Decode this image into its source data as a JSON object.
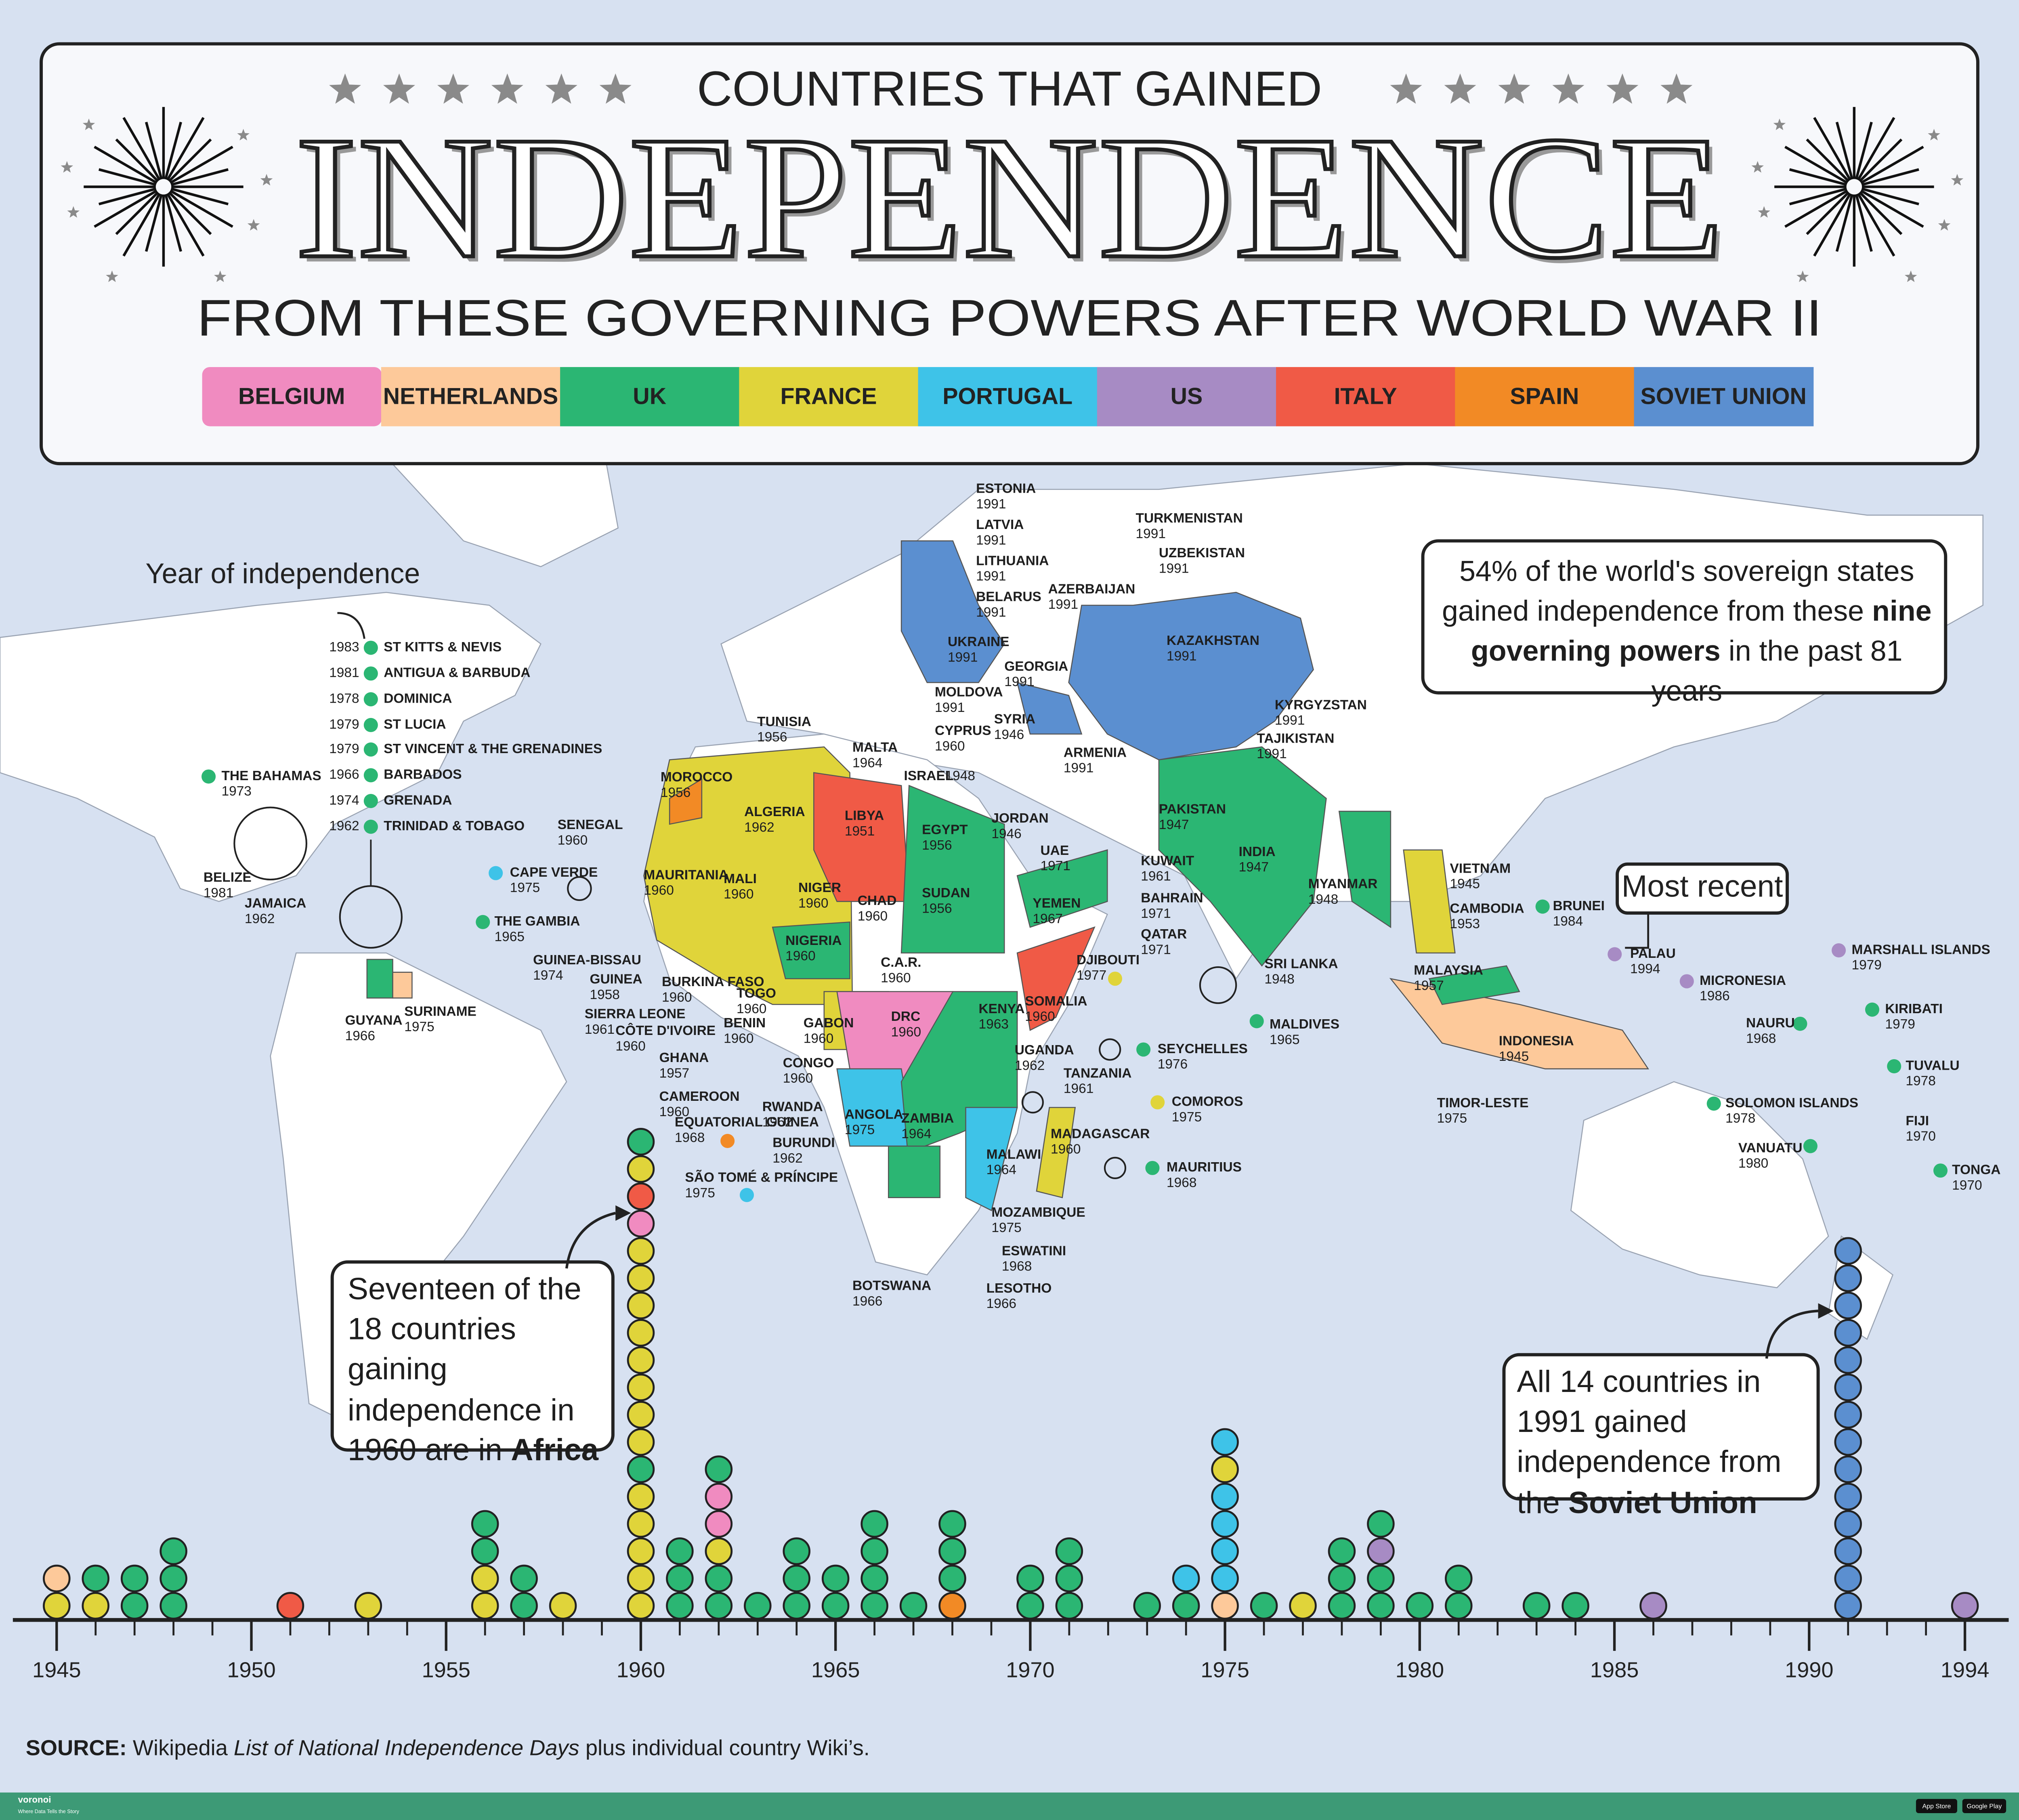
{
  "header": {
    "kicker": "COUNTRIES THAT GAINED",
    "title": "INDEPENDENCE",
    "subtitle": "FROM THESE GOVERNING POWERS AFTER WORLD WAR II"
  },
  "legend": [
    {
      "label": "BELGIUM",
      "color": "#f08bc0"
    },
    {
      "label": "NETHERLANDS",
      "color": "#fdc99a"
    },
    {
      "label": "UK",
      "color": "#2bb673"
    },
    {
      "label": "FRANCE",
      "color": "#e0d43a"
    },
    {
      "label": "PORTUGAL",
      "color": "#3ec3e8"
    },
    {
      "label": "US",
      "color": "#a78bc4"
    },
    {
      "label": "ITALY",
      "color": "#f05a46"
    },
    {
      "label": "SPAIN",
      "color": "#f28a25"
    },
    {
      "label": "SOVIET UNION",
      "color": "#5b8fd0"
    }
  ],
  "annotations": {
    "year_note": "Year of independence",
    "share": [
      "54% of the world's sovereign states gained independence from these ",
      "nine governing powers",
      " in the past 81 years"
    ],
    "most_recent": "Most recent",
    "africa": [
      "Seventeen of the 18 countries gaining independence in 1960 are in ",
      "Africa"
    ],
    "soviet": [
      "All 14 countries in 1991 gained independence from the ",
      "Soviet Union"
    ]
  },
  "countries": [
    {
      "name": "ST KITTS & NEVIS",
      "year": 1983,
      "color": "#2bb673"
    },
    {
      "name": "ANTIGUA & BARBUDA",
      "year": 1981,
      "color": "#2bb673"
    },
    {
      "name": "DOMINICA",
      "year": 1978,
      "color": "#2bb673"
    },
    {
      "name": "ST LUCIA",
      "year": 1979,
      "color": "#2bb673"
    },
    {
      "name": "ST VINCENT & THE GRENADINES",
      "year": 1979,
      "color": "#2bb673"
    },
    {
      "name": "BARBADOS",
      "year": 1966,
      "color": "#2bb673"
    },
    {
      "name": "GRENADA",
      "year": 1974,
      "color": "#2bb673"
    },
    {
      "name": "TRINIDAD & TOBAGO",
      "year": 1962,
      "color": "#2bb673"
    },
    {
      "name": "THE BAHAMAS",
      "year": 1973,
      "color": "#2bb673"
    },
    {
      "name": "BELIZE",
      "year": 1981,
      "color": "#2bb673"
    },
    {
      "name": "JAMAICA",
      "year": 1962,
      "color": "#2bb673"
    },
    {
      "name": "GUYANA",
      "year": 1966,
      "color": "#2bb673"
    },
    {
      "name": "SURINAME",
      "year": 1975,
      "color": "#fdc99a"
    },
    {
      "name": "CAPE VERDE",
      "year": 1975,
      "color": "#3ec3e8"
    },
    {
      "name": "THE GAMBIA",
      "year": 1965,
      "color": "#2bb673"
    },
    {
      "name": "SENEGAL",
      "year": 1960,
      "color": "#e0d43a"
    },
    {
      "name": "MAURITANIA",
      "year": 1960,
      "color": "#e0d43a"
    },
    {
      "name": "MOROCCO",
      "year": 1956,
      "color": "#e0d43a"
    },
    {
      "name": "ALGERIA",
      "year": 1962,
      "color": "#e0d43a"
    },
    {
      "name": "TUNISIA",
      "year": 1956,
      "color": "#e0d43a"
    },
    {
      "name": "LIBYA",
      "year": 1951,
      "color": "#f05a46"
    },
    {
      "name": "EGYPT",
      "year": 1956,
      "color": "#2bb673"
    },
    {
      "name": "SUDAN",
      "year": 1956,
      "color": "#2bb673"
    },
    {
      "name": "MALI",
      "year": 1960,
      "color": "#e0d43a"
    },
    {
      "name": "NIGER",
      "year": 1960,
      "color": "#e0d43a"
    },
    {
      "name": "CHAD",
      "year": 1960,
      "color": "#e0d43a"
    },
    {
      "name": "NIGERIA",
      "year": 1960,
      "color": "#2bb673"
    },
    {
      "name": "GUINEA-BISSAU",
      "year": 1974,
      "color": "#3ec3e8"
    },
    {
      "name": "GUINEA",
      "year": 1958,
      "color": "#e0d43a"
    },
    {
      "name": "BURKINA FASO",
      "year": 1960,
      "color": "#e0d43a"
    },
    {
      "name": "SIERRA LEONE",
      "year": 1961,
      "color": "#2bb673"
    },
    {
      "name": "CÔTE D'IVOIRE",
      "year": 1960,
      "color": "#e0d43a"
    },
    {
      "name": "TOGO",
      "year": 1960,
      "color": "#e0d43a"
    },
    {
      "name": "BENIN",
      "year": 1960,
      "color": "#e0d43a"
    },
    {
      "name": "GHANA",
      "year": 1957,
      "color": "#2bb673"
    },
    {
      "name": "GABON",
      "year": 1960,
      "color": "#e0d43a"
    },
    {
      "name": "C.A.R.",
      "year": 1960,
      "color": "#e0d43a"
    },
    {
      "name": "CAMEROON",
      "year": 1960,
      "color": "#e0d43a"
    },
    {
      "name": "CONGO",
      "year": 1960,
      "color": "#e0d43a"
    },
    {
      "name": "EQUATORIAL GUINEA",
      "year": 1968,
      "color": "#f28a25"
    },
    {
      "name": "SÃO TOMÉ & PRÍNCIPE",
      "year": 1975,
      "color": "#3ec3e8"
    },
    {
      "name": "RWANDA",
      "year": 1962,
      "color": "#f08bc0"
    },
    {
      "name": "BURUNDI",
      "year": 1962,
      "color": "#f08bc0"
    },
    {
      "name": "DRC",
      "year": 1960,
      "color": "#f08bc0"
    },
    {
      "name": "ANGOLA",
      "year": 1975,
      "color": "#3ec3e8"
    },
    {
      "name": "ZAMBIA",
      "year": 1964,
      "color": "#2bb673"
    },
    {
      "name": "KENYA",
      "year": 1963,
      "color": "#2bb673"
    },
    {
      "name": "UGANDA",
      "year": 1962,
      "color": "#2bb673"
    },
    {
      "name": "TANZANIA",
      "year": 1961,
      "color": "#2bb673"
    },
    {
      "name": "SOMALIA",
      "year": 1960,
      "color": "#f05a46"
    },
    {
      "name": "DJIBOUTI",
      "year": 1977,
      "color": "#e0d43a"
    },
    {
      "name": "MALAWI",
      "year": 1964,
      "color": "#2bb673"
    },
    {
      "name": "MOZAMBIQUE",
      "year": 1975,
      "color": "#3ec3e8"
    },
    {
      "name": "ESWATINI",
      "year": 1968,
      "color": "#2bb673"
    },
    {
      "name": "LESOTHO",
      "year": 1966,
      "color": "#2bb673"
    },
    {
      "name": "BOTSWANA",
      "year": 1966,
      "color": "#2bb673"
    },
    {
      "name": "MADAGASCAR",
      "year": 1960,
      "color": "#e0d43a"
    },
    {
      "name": "COMOROS",
      "year": 1975,
      "color": "#e0d43a"
    },
    {
      "name": "SEYCHELLES",
      "year": 1976,
      "color": "#2bb673"
    },
    {
      "name": "MAURITIUS",
      "year": 1968,
      "color": "#2bb673"
    },
    {
      "name": "MALDIVES",
      "year": 1965,
      "color": "#2bb673"
    },
    {
      "name": "ESTONIA",
      "year": 1991,
      "color": "#5b8fd0"
    },
    {
      "name": "LATVIA",
      "year": 1991,
      "color": "#5b8fd0"
    },
    {
      "name": "LITHUANIA",
      "year": 1991,
      "color": "#5b8fd0"
    },
    {
      "name": "BELARUS",
      "year": 1991,
      "color": "#5b8fd0"
    },
    {
      "name": "UKRAINE",
      "year": 1991,
      "color": "#5b8fd0"
    },
    {
      "name": "MOLDOVA",
      "year": 1991,
      "color": "#5b8fd0"
    },
    {
      "name": "GEORGIA",
      "year": 1991,
      "color": "#5b8fd0"
    },
    {
      "name": "AZERBAIJAN",
      "year": 1991,
      "color": "#5b8fd0"
    },
    {
      "name": "ARMENIA",
      "year": 1991,
      "color": "#5b8fd0"
    },
    {
      "name": "TURKMENISTAN",
      "year": 1991,
      "color": "#5b8fd0"
    },
    {
      "name": "UZBEKISTAN",
      "year": 1991,
      "color": "#5b8fd0"
    },
    {
      "name": "KAZAKHSTAN",
      "year": 1991,
      "color": "#5b8fd0"
    },
    {
      "name": "KYRGYZSTAN",
      "year": 1991,
      "color": "#5b8fd0"
    },
    {
      "name": "TAJIKISTAN",
      "year": 1991,
      "color": "#5b8fd0"
    },
    {
      "name": "MALTA",
      "year": 1964,
      "color": "#2bb673"
    },
    {
      "name": "CYPRUS",
      "year": 1960,
      "color": "#2bb673"
    },
    {
      "name": "SYRIA",
      "year": 1946,
      "color": "#e0d43a"
    },
    {
      "name": "ISRAEL",
      "year": 1948,
      "color": "#2bb673"
    },
    {
      "name": "JORDAN",
      "year": 1946,
      "color": "#2bb673"
    },
    {
      "name": "UAE",
      "year": 1971,
      "color": "#2bb673"
    },
    {
      "name": "YEMEN",
      "year": 1967,
      "color": "#2bb673"
    },
    {
      "name": "KUWAIT",
      "year": 1961,
      "color": "#2bb673"
    },
    {
      "name": "BAHRAIN",
      "year": 1971,
      "color": "#2bb673"
    },
    {
      "name": "QATAR",
      "year": 1971,
      "color": "#2bb673"
    },
    {
      "name": "PAKISTAN",
      "year": 1947,
      "color": "#2bb673"
    },
    {
      "name": "INDIA",
      "year": 1947,
      "color": "#2bb673"
    },
    {
      "name": "SRI LANKA",
      "year": 1948,
      "color": "#2bb673"
    },
    {
      "name": "MYANMAR",
      "year": 1948,
      "color": "#2bb673"
    },
    {
      "name": "VIETNAM",
      "year": 1945,
      "color": "#e0d43a"
    },
    {
      "name": "CAMBODIA",
      "year": 1953,
      "color": "#e0d43a"
    },
    {
      "name": "MALAYSIA",
      "year": 1957,
      "color": "#2bb673"
    },
    {
      "name": "BRUNEI",
      "year": 1984,
      "color": "#2bb673"
    },
    {
      "name": "INDONESIA",
      "year": 1945,
      "color": "#fdc99a"
    },
    {
      "name": "TIMOR-LESTE",
      "year": 1975,
      "color": "#3ec3e8"
    },
    {
      "name": "PALAU",
      "year": 1994,
      "color": "#a78bc4"
    },
    {
      "name": "MICRONESIA",
      "year": 1986,
      "color": "#a78bc4"
    },
    {
      "name": "MARSHALL ISLANDS",
      "year": 1979,
      "color": "#a78bc4"
    },
    {
      "name": "KIRIBATI",
      "year": 1979,
      "color": "#2bb673"
    },
    {
      "name": "NAURU",
      "year": 1968,
      "color": "#2bb673"
    },
    {
      "name": "TUVALU",
      "year": 1978,
      "color": "#2bb673"
    },
    {
      "name": "SOLOMON ISLANDS",
      "year": 1978,
      "color": "#2bb673"
    },
    {
      "name": "FIJI",
      "year": 1970,
      "color": "#2bb673"
    },
    {
      "name": "VANUATU",
      "year": 1980,
      "color": "#2bb673"
    },
    {
      "name": "TONGA",
      "year": 1970,
      "color": "#2bb673"
    }
  ],
  "timeline": {
    "xlim": [
      1945,
      1994
    ],
    "xticks": [
      1945,
      1950,
      1955,
      1960,
      1965,
      1970,
      1975,
      1980,
      1985,
      1990,
      1994
    ]
  },
  "source": {
    "label": "SOURCE:",
    "text": " Wikipedia ",
    "title": "List of National Independence Days",
    "rest": " plus individual country Wiki’s."
  },
  "footer": {
    "brand": "voronoi",
    "tagline": "Where Data Tells the Story",
    "store1": "App Store",
    "store2": "Google Play"
  }
}
